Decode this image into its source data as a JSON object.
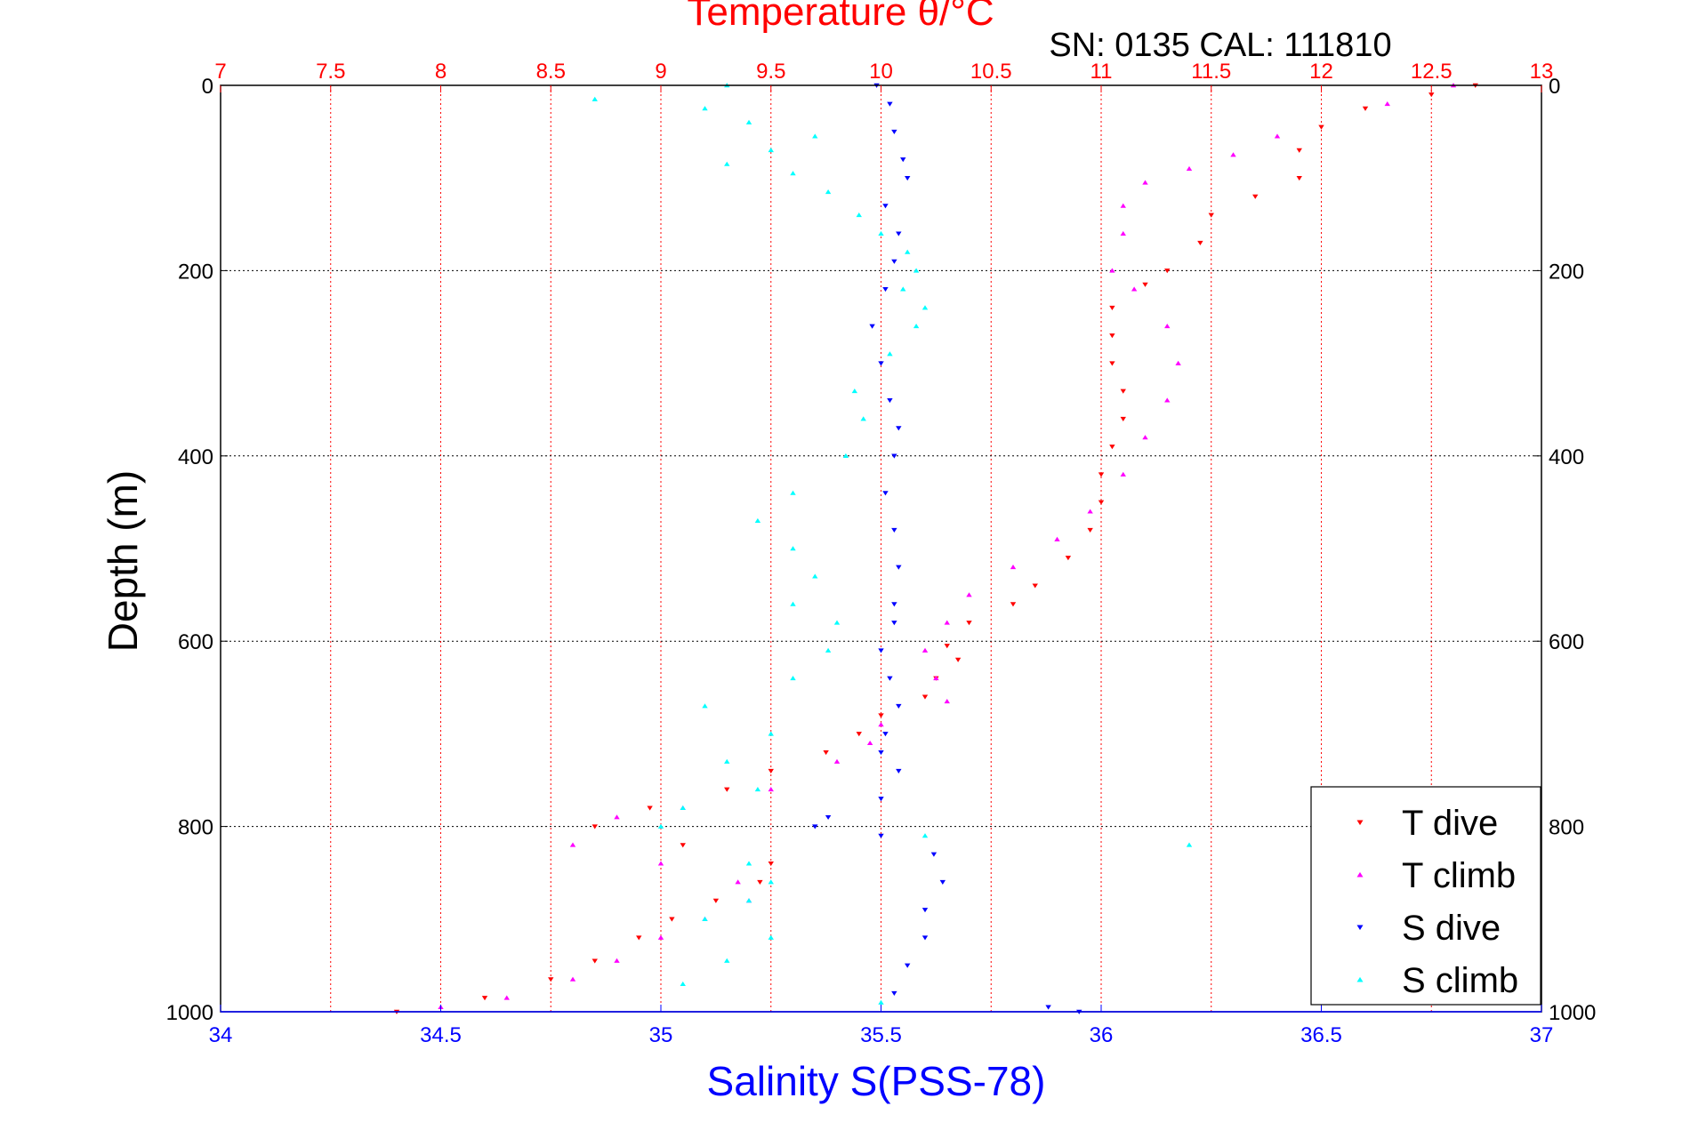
{
  "chart_data": {
    "type": "scatter",
    "title": "Temperature θ/°C",
    "subtitle": "SN: 0135  CAL: 111810",
    "ylabel": "Depth (m)",
    "xlabel_bottom": "Salinity S(PSS-78)",
    "xlabel_top": "Temperature θ/°C",
    "ylim": [
      0,
      1000
    ],
    "y_reversed": true,
    "xlim_bottom": [
      34,
      37
    ],
    "xlim_top": [
      7,
      13
    ],
    "grid": true,
    "legend_position": "bottom-right",
    "y_ticks": [
      "0",
      "200",
      "400",
      "600",
      "800",
      "1000"
    ],
    "x_bottom_ticks": [
      "34",
      "34.5",
      "35",
      "35.5",
      "36",
      "36.5",
      "37"
    ],
    "x_top_ticks": [
      "7",
      "7.5",
      "8",
      "8.5",
      "9",
      "9.5",
      "10",
      "10.5",
      "11",
      "11.5",
      "12",
      "12.5",
      "13"
    ],
    "colors": {
      "temperature_axis": "#ff0000",
      "salinity_axis": "#0000ff",
      "grid_top": "#ff0000",
      "grid_y": "#000000",
      "frame": "#000000"
    },
    "series": [
      {
        "name": "T dive",
        "axis": "temperature",
        "color": "#ff0000",
        "marker": "triangle-down",
        "points": [
          [
            12.7,
            0
          ],
          [
            12.5,
            10
          ],
          [
            12.2,
            25
          ],
          [
            12.0,
            45
          ],
          [
            11.9,
            70
          ],
          [
            11.9,
            100
          ],
          [
            11.7,
            120
          ],
          [
            11.5,
            140
          ],
          [
            11.45,
            170
          ],
          [
            11.3,
            200
          ],
          [
            11.2,
            215
          ],
          [
            11.05,
            240
          ],
          [
            11.05,
            270
          ],
          [
            11.05,
            300
          ],
          [
            11.1,
            330
          ],
          [
            11.1,
            360
          ],
          [
            11.05,
            390
          ],
          [
            11.0,
            420
          ],
          [
            11.0,
            450
          ],
          [
            10.95,
            480
          ],
          [
            10.85,
            510
          ],
          [
            10.7,
            540
          ],
          [
            10.6,
            560
          ],
          [
            10.4,
            580
          ],
          [
            10.3,
            605
          ],
          [
            10.35,
            620
          ],
          [
            10.25,
            640
          ],
          [
            10.2,
            660
          ],
          [
            10.0,
            680
          ],
          [
            9.9,
            700
          ],
          [
            9.75,
            720
          ],
          [
            9.5,
            740
          ],
          [
            9.3,
            760
          ],
          [
            8.95,
            780
          ],
          [
            8.7,
            800
          ],
          [
            9.1,
            820
          ],
          [
            9.5,
            840
          ],
          [
            9.45,
            860
          ],
          [
            9.25,
            880
          ],
          [
            9.05,
            900
          ],
          [
            8.9,
            920
          ],
          [
            8.7,
            945
          ],
          [
            8.5,
            965
          ],
          [
            8.2,
            985
          ],
          [
            7.8,
            1000
          ]
        ]
      },
      {
        "name": "T climb",
        "axis": "temperature",
        "color": "#ff00ff",
        "marker": "triangle-up",
        "points": [
          [
            12.6,
            0
          ],
          [
            12.3,
            20
          ],
          [
            11.8,
            55
          ],
          [
            11.6,
            75
          ],
          [
            11.4,
            90
          ],
          [
            11.2,
            105
          ],
          [
            11.1,
            130
          ],
          [
            11.1,
            160
          ],
          [
            11.05,
            200
          ],
          [
            11.15,
            220
          ],
          [
            11.3,
            260
          ],
          [
            11.35,
            300
          ],
          [
            11.3,
            340
          ],
          [
            11.2,
            380
          ],
          [
            11.1,
            420
          ],
          [
            10.95,
            460
          ],
          [
            10.8,
            490
          ],
          [
            10.6,
            520
          ],
          [
            10.4,
            550
          ],
          [
            10.3,
            580
          ],
          [
            10.2,
            610
          ],
          [
            10.25,
            640
          ],
          [
            10.3,
            665
          ],
          [
            10.0,
            690
          ],
          [
            9.95,
            710
          ],
          [
            9.8,
            730
          ],
          [
            9.5,
            760
          ],
          [
            9.1,
            780
          ],
          [
            8.8,
            790
          ],
          [
            8.6,
            820
          ],
          [
            9.0,
            840
          ],
          [
            9.35,
            860
          ],
          [
            9.4,
            880
          ],
          [
            9.2,
            900
          ],
          [
            9.0,
            920
          ],
          [
            8.8,
            945
          ],
          [
            8.6,
            965
          ],
          [
            8.3,
            985
          ],
          [
            8.0,
            995
          ]
        ]
      },
      {
        "name": "S dive",
        "axis": "salinity",
        "color": "#0000ff",
        "marker": "triangle-down",
        "points": [
          [
            35.49,
            0
          ],
          [
            35.52,
            20
          ],
          [
            35.53,
            50
          ],
          [
            35.55,
            80
          ],
          [
            35.56,
            100
          ],
          [
            35.51,
            130
          ],
          [
            35.54,
            160
          ],
          [
            35.53,
            190
          ],
          [
            35.51,
            220
          ],
          [
            35.48,
            260
          ],
          [
            35.5,
            300
          ],
          [
            35.52,
            340
          ],
          [
            35.54,
            370
          ],
          [
            35.53,
            400
          ],
          [
            35.51,
            440
          ],
          [
            35.53,
            480
          ],
          [
            35.54,
            520
          ],
          [
            35.53,
            560
          ],
          [
            35.53,
            580
          ],
          [
            35.5,
            610
          ],
          [
            35.52,
            640
          ],
          [
            35.54,
            670
          ],
          [
            35.51,
            700
          ],
          [
            35.5,
            720
          ],
          [
            35.54,
            740
          ],
          [
            35.5,
            770
          ],
          [
            35.38,
            790
          ],
          [
            35.35,
            800
          ],
          [
            35.5,
            810
          ],
          [
            35.62,
            830
          ],
          [
            35.64,
            860
          ],
          [
            35.6,
            890
          ],
          [
            35.6,
            920
          ],
          [
            35.56,
            950
          ],
          [
            35.53,
            980
          ],
          [
            35.88,
            995
          ],
          [
            35.95,
            1000
          ]
        ]
      },
      {
        "name": "S climb",
        "axis": "salinity",
        "color": "#00ffff",
        "marker": "triangle-up",
        "points": [
          [
            35.15,
            0
          ],
          [
            34.85,
            15
          ],
          [
            35.1,
            25
          ],
          [
            35.2,
            40
          ],
          [
            35.35,
            55
          ],
          [
            35.25,
            70
          ],
          [
            35.15,
            85
          ],
          [
            35.3,
            95
          ],
          [
            35.38,
            115
          ],
          [
            35.45,
            140
          ],
          [
            35.5,
            160
          ],
          [
            35.56,
            180
          ],
          [
            35.58,
            200
          ],
          [
            35.55,
            220
          ],
          [
            35.6,
            240
          ],
          [
            35.58,
            260
          ],
          [
            35.52,
            290
          ],
          [
            35.44,
            330
          ],
          [
            35.46,
            360
          ],
          [
            35.42,
            400
          ],
          [
            35.3,
            440
          ],
          [
            35.22,
            470
          ],
          [
            35.3,
            500
          ],
          [
            35.35,
            530
          ],
          [
            35.3,
            560
          ],
          [
            35.4,
            580
          ],
          [
            35.38,
            610
          ],
          [
            35.3,
            640
          ],
          [
            35.1,
            670
          ],
          [
            35.25,
            700
          ],
          [
            35.15,
            730
          ],
          [
            35.22,
            760
          ],
          [
            35.05,
            780
          ],
          [
            35.0,
            800
          ],
          [
            35.6,
            810
          ],
          [
            36.2,
            820
          ],
          [
            35.2,
            840
          ],
          [
            35.25,
            860
          ],
          [
            35.2,
            880
          ],
          [
            35.1,
            900
          ],
          [
            35.25,
            920
          ],
          [
            35.15,
            945
          ],
          [
            35.05,
            970
          ],
          [
            35.5,
            990
          ]
        ]
      }
    ]
  }
}
